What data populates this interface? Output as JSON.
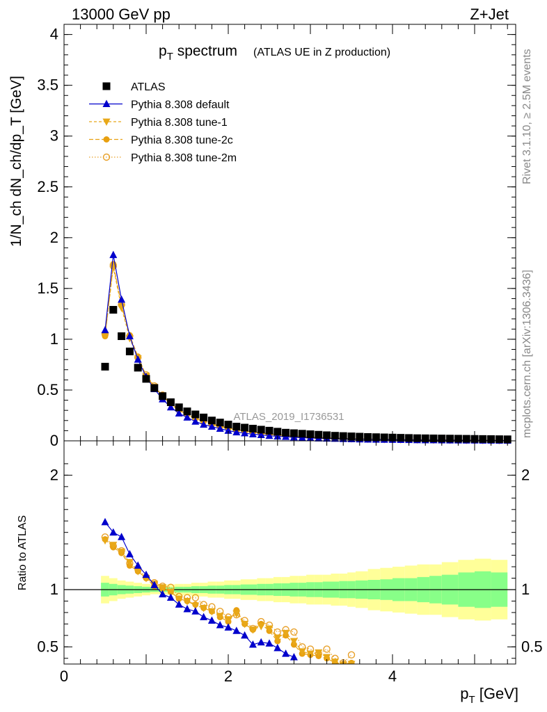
{
  "header": {
    "left": "13000 GeV pp",
    "right": "Z+Jet"
  },
  "side_text": {
    "top": "Rivet 3.1.10, ≥ 2.5M events",
    "bottom": "mcplots.cern.ch [arXiv:1306.3436]"
  },
  "watermark": "ATLAS_2019_I1736531",
  "chart_data": [
    {
      "type": "scatter",
      "title": "p_T spectrum",
      "title_main": "p",
      "title_sub": "T",
      "title_rest": " spectrum",
      "title_note": "(ATLAS UE in Z production)",
      "ylabel": "1/N_ch dN_ch/dp_T [GeV]",
      "xlim": [
        0,
        5.5
      ],
      "ylim": [
        0,
        4.1
      ],
      "yticks": [
        "0",
        "0.5",
        "1",
        "1.5",
        "2",
        "2.5",
        "3",
        "3.5",
        "4"
      ],
      "legend_position": "top-left",
      "series": [
        {
          "name": "ATLAS",
          "color": "#000000",
          "marker": "square",
          "x": [
            0.5,
            0.6,
            0.7,
            0.8,
            0.9,
            1.0,
            1.1,
            1.2,
            1.3,
            1.4,
            1.5,
            1.6,
            1.7,
            1.8,
            1.9,
            2.0,
            2.1,
            2.2,
            2.3,
            2.4,
            2.5,
            2.6,
            2.7,
            2.8,
            2.9,
            3.0,
            3.1,
            3.2,
            3.3,
            3.4,
            3.5,
            3.6,
            3.7,
            3.8,
            3.9,
            4.0,
            4.1,
            4.2,
            4.3,
            4.4,
            4.5,
            4.6,
            4.7,
            4.8,
            4.9,
            5.0,
            5.1,
            5.2,
            5.3,
            5.4
          ],
          "y": [
            0.73,
            1.29,
            1.03,
            0.88,
            0.72,
            0.61,
            0.52,
            0.44,
            0.38,
            0.33,
            0.29,
            0.26,
            0.23,
            0.2,
            0.18,
            0.16,
            0.14,
            0.13,
            0.12,
            0.11,
            0.1,
            0.09,
            0.08,
            0.075,
            0.07,
            0.065,
            0.06,
            0.055,
            0.05,
            0.047,
            0.044,
            0.041,
            0.038,
            0.036,
            0.034,
            0.032,
            0.03,
            0.028,
            0.026,
            0.025,
            0.024,
            0.023,
            0.022,
            0.021,
            0.02,
            0.019,
            0.018,
            0.017,
            0.016,
            0.015
          ]
        },
        {
          "name": "Pythia 8.308 default",
          "color": "#0000cc",
          "marker": "triangle",
          "x": [
            0.5,
            0.6,
            0.7,
            0.8,
            0.9,
            1.0,
            1.1,
            1.2,
            1.3,
            1.4,
            1.5,
            1.6,
            1.7,
            1.8,
            1.9,
            2.0,
            2.1,
            2.2,
            2.3,
            2.4,
            2.5,
            2.6,
            2.7,
            2.8,
            2.9,
            3.0,
            3.1,
            3.2,
            3.3,
            3.4,
            3.5,
            3.6,
            3.7,
            3.8,
            3.9,
            4.0,
            4.1,
            4.2,
            4.3,
            4.4,
            4.5,
            4.6,
            4.7,
            4.8,
            4.9,
            5.0,
            5.1,
            5.2,
            5.3,
            5.4
          ],
          "y": [
            1.09,
            1.83,
            1.39,
            1.03,
            0.8,
            0.63,
            0.51,
            0.41,
            0.33,
            0.27,
            0.23,
            0.19,
            0.16,
            0.14,
            0.12,
            0.1,
            0.085,
            0.075,
            0.065,
            0.058,
            0.05,
            0.044,
            0.04,
            0.035,
            0.031,
            0.028,
            0.025,
            0.023,
            0.021,
            0.019,
            0.017,
            0.015,
            0.014,
            0.013,
            0.012,
            0.011,
            0.01,
            0.009,
            0.008,
            0.007,
            0.0065,
            0.006,
            0.0055,
            0.005,
            0.0045,
            0.004,
            0.0035,
            0.003,
            0.0028,
            0.0025
          ]
        },
        {
          "name": "Pythia 8.308 tune-1",
          "color": "#e8a818",
          "marker": "triangle-down",
          "x": [
            0.5,
            0.6,
            0.7,
            0.8,
            0.9,
            1.0,
            1.1,
            1.2,
            1.3,
            1.4,
            1.5,
            1.6,
            1.7,
            1.8,
            1.9,
            2.0,
            2.1,
            2.2,
            2.3,
            2.4,
            2.5,
            2.6,
            2.7,
            2.8,
            2.9,
            3.0,
            3.1,
            3.2,
            3.3,
            3.4,
            3.5,
            3.6,
            3.7,
            3.8,
            3.9,
            4.0,
            4.1,
            4.2,
            4.3,
            4.4,
            4.5,
            4.6,
            4.7,
            4.8,
            4.9,
            5.0,
            5.1,
            5.2,
            5.3,
            5.4
          ],
          "y": [
            1.04,
            1.71,
            1.31,
            1.01,
            0.81,
            0.64,
            0.53,
            0.44,
            0.36,
            0.3,
            0.26,
            0.22,
            0.19,
            0.16,
            0.14,
            0.12,
            0.11,
            0.095,
            0.085,
            0.075,
            0.066,
            0.058,
            0.052,
            0.046,
            0.041,
            0.037,
            0.033,
            0.03,
            0.027,
            0.024,
            0.022,
            0.02,
            0.018,
            0.016,
            0.015,
            0.014,
            0.013,
            0.012,
            0.011,
            0.01,
            0.009,
            0.0085,
            0.008,
            0.0075,
            0.007,
            0.0065,
            0.006,
            0.0055,
            0.005,
            0.0045
          ]
        },
        {
          "name": "Pythia 8.308 tune-2c",
          "color": "#e8a010",
          "marker": "circle",
          "x": [
            0.5,
            0.6,
            0.7,
            0.8,
            0.9,
            1.0,
            1.1,
            1.2,
            1.3,
            1.4,
            1.5,
            1.6,
            1.7,
            1.8,
            1.9,
            2.0,
            2.1,
            2.2,
            2.3,
            2.4,
            2.5,
            2.6,
            2.7,
            2.8,
            2.9,
            3.0,
            3.1,
            3.2,
            3.3,
            3.4,
            3.5,
            3.6,
            3.7,
            3.8,
            3.9,
            4.0,
            4.1,
            4.2,
            4.3,
            4.4,
            4.5,
            4.6,
            4.7,
            4.8,
            4.9,
            5.0,
            5.1,
            5.2,
            5.3,
            5.4
          ],
          "y": [
            1.03,
            1.74,
            1.33,
            1.04,
            0.83,
            0.64,
            0.53,
            0.44,
            0.37,
            0.3,
            0.26,
            0.22,
            0.19,
            0.16,
            0.14,
            0.12,
            0.11,
            0.095,
            0.085,
            0.075,
            0.066,
            0.058,
            0.052,
            0.046,
            0.041,
            0.037,
            0.033,
            0.03,
            0.027,
            0.024,
            0.022,
            0.02,
            0.018,
            0.016,
            0.015,
            0.014,
            0.013,
            0.012,
            0.011,
            0.01,
            0.009,
            0.0085,
            0.008,
            0.0075,
            0.007,
            0.0065,
            0.006,
            0.0055,
            0.005,
            0.0045
          ]
        },
        {
          "name": "Pythia 8.308 tune-2m",
          "color": "#e8a028",
          "marker": "circle-open",
          "x": [
            0.5,
            0.6,
            0.7,
            0.8,
            0.9,
            1.0,
            1.1,
            1.2,
            1.3,
            1.4,
            1.5,
            1.6,
            1.7,
            1.8,
            1.9,
            2.0,
            2.1,
            2.2,
            2.3,
            2.4,
            2.5,
            2.6,
            2.7,
            2.8,
            2.9,
            3.0,
            3.1,
            3.2,
            3.3,
            3.4,
            3.5,
            3.6,
            3.7,
            3.8,
            3.9,
            4.0,
            4.1,
            4.2,
            4.3,
            4.4,
            4.5,
            4.6,
            4.7,
            4.8,
            4.9,
            5.0,
            5.1,
            5.2,
            5.3,
            5.4
          ],
          "y": [
            1.05,
            1.72,
            1.34,
            1.03,
            0.82,
            0.65,
            0.54,
            0.45,
            0.37,
            0.31,
            0.27,
            0.23,
            0.2,
            0.17,
            0.15,
            0.13,
            0.11,
            0.1,
            0.09,
            0.08,
            0.07,
            0.062,
            0.055,
            0.049,
            0.044,
            0.039,
            0.035,
            0.032,
            0.029,
            0.026,
            0.023,
            0.021,
            0.019,
            0.017,
            0.016,
            0.015,
            0.014,
            0.013,
            0.012,
            0.011,
            0.01,
            0.009,
            0.0085,
            0.008,
            0.0075,
            0.007,
            0.0065,
            0.006,
            0.0055,
            0.005
          ]
        }
      ]
    },
    {
      "type": "scatter",
      "title": "",
      "ylabel": "Ratio to ATLAS",
      "xlabel": "p_T [GeV]",
      "xlabel_main": "p",
      "xlabel_sub": "T",
      "xlabel_rest": " [GeV]",
      "xlim": [
        0,
        5.5
      ],
      "ylim": [
        0.35,
        2.3
      ],
      "xticks": [
        "0",
        "2",
        "4"
      ],
      "yticks": [
        "0.5",
        "1",
        "2"
      ],
      "reference_line": 1,
      "bands": {
        "x_edges": [
          0.45,
          0.55,
          0.65,
          0.75,
          0.85,
          0.95,
          1.05,
          1.15,
          1.25,
          1.35,
          1.45,
          1.55,
          1.65,
          1.75,
          1.85,
          1.95,
          2.05,
          2.15,
          2.25,
          2.35,
          2.45,
          2.55,
          2.65,
          2.75,
          2.85,
          2.95,
          3.05,
          3.15,
          3.25,
          3.35,
          3.45,
          3.55,
          3.7,
          3.85,
          4.0,
          4.15,
          4.3,
          4.45,
          4.6,
          4.8,
          5.0,
          5.2,
          5.4
        ],
        "stat_half": [
          0.06,
          0.05,
          0.04,
          0.035,
          0.03,
          0.025,
          0.02,
          0.02,
          0.02,
          0.025,
          0.025,
          0.03,
          0.03,
          0.035,
          0.035,
          0.04,
          0.04,
          0.045,
          0.045,
          0.05,
          0.05,
          0.055,
          0.055,
          0.06,
          0.06,
          0.065,
          0.065,
          0.07,
          0.07,
          0.075,
          0.075,
          0.08,
          0.085,
          0.09,
          0.1,
          0.1,
          0.11,
          0.12,
          0.13,
          0.15,
          0.16,
          0.15
        ],
        "total_half": [
          0.12,
          0.1,
          0.08,
          0.07,
          0.06,
          0.05,
          0.04,
          0.04,
          0.045,
          0.05,
          0.05,
          0.06,
          0.06,
          0.07,
          0.07,
          0.08,
          0.08,
          0.09,
          0.09,
          0.1,
          0.1,
          0.11,
          0.11,
          0.12,
          0.12,
          0.13,
          0.13,
          0.13,
          0.14,
          0.14,
          0.15,
          0.16,
          0.18,
          0.19,
          0.2,
          0.21,
          0.22,
          0.22,
          0.24,
          0.26,
          0.27,
          0.26
        ],
        "stat_color": "#88ff88",
        "total_color": "#ffff99"
      },
      "series": [
        {
          "name": "Pythia 8.308 default",
          "color": "#0000cc",
          "marker": "triangle",
          "x": [
            0.5,
            0.6,
            0.7,
            0.8,
            0.9,
            1.0,
            1.1,
            1.2,
            1.3,
            1.4,
            1.5,
            1.6,
            1.7,
            1.8,
            1.9,
            2.0,
            2.1,
            2.2,
            2.3,
            2.4,
            2.5,
            2.6,
            2.7,
            2.8
          ],
          "y": [
            1.59,
            1.5,
            1.46,
            1.31,
            1.21,
            1.13,
            1.04,
            0.96,
            0.93,
            0.87,
            0.83,
            0.81,
            0.76,
            0.73,
            0.69,
            0.67,
            0.64,
            0.6,
            0.52,
            0.54,
            0.53,
            0.49,
            0.44,
            0.41
          ]
        },
        {
          "name": "Pythia 8.308 tune-1",
          "color": "#e8a818",
          "marker": "triangle-down",
          "x": [
            0.5,
            0.6,
            0.7,
            0.8,
            0.9,
            1.0,
            1.1,
            1.2,
            1.3,
            1.4,
            1.5,
            1.6,
            1.7,
            1.8,
            1.9,
            2.0,
            2.1,
            2.2,
            2.3,
            2.4,
            2.5,
            2.6,
            2.7,
            2.8,
            2.9,
            3.0,
            3.1,
            3.2,
            3.3,
            3.4,
            3.5
          ],
          "y": [
            1.43,
            1.39,
            1.33,
            1.24,
            1.16,
            1.1,
            1.05,
            1.02,
            0.98,
            0.92,
            0.9,
            0.86,
            0.84,
            0.81,
            0.77,
            0.74,
            0.79,
            0.7,
            0.65,
            0.68,
            0.66,
            0.58,
            0.62,
            0.55,
            0.46,
            0.44,
            0.45,
            0.41,
            0.37,
            0.34,
            0.35
          ]
        },
        {
          "name": "Pythia 8.308 tune-2c",
          "color": "#e8a010",
          "marker": "circle",
          "x": [
            0.5,
            0.6,
            0.7,
            0.8,
            0.9,
            1.0,
            1.1,
            1.2,
            1.3,
            1.4,
            1.5,
            1.6,
            1.7,
            1.8,
            1.9,
            2.0,
            2.1,
            2.2,
            2.3,
            2.4,
            2.5,
            2.6,
            2.7,
            2.8,
            2.9,
            3.0,
            3.1,
            3.2,
            3.3,
            3.4,
            3.5
          ],
          "y": [
            1.44,
            1.37,
            1.32,
            1.21,
            1.16,
            1.1,
            1.03,
            1.01,
            0.98,
            0.92,
            0.9,
            0.87,
            0.84,
            0.81,
            0.76,
            0.72,
            0.82,
            0.7,
            0.65,
            0.7,
            0.64,
            0.55,
            0.6,
            0.52,
            0.44,
            0.43,
            0.42,
            0.4,
            0.36,
            0.35,
            0.36
          ]
        },
        {
          "name": "Pythia 8.308 tune-2m",
          "color": "#e8a028",
          "marker": "circle-open",
          "x": [
            0.5,
            0.6,
            0.7,
            0.8,
            0.9,
            1.0,
            1.1,
            1.2,
            1.3,
            1.4,
            1.5,
            1.6,
            1.7,
            1.8,
            1.9,
            2.0,
            2.1,
            2.2,
            2.3,
            2.4,
            2.5,
            2.6,
            2.7,
            2.8,
            2.9,
            3.0,
            3.1,
            3.2,
            3.3,
            3.4,
            3.5
          ],
          "y": [
            1.46,
            1.38,
            1.34,
            1.23,
            1.18,
            1.11,
            1.06,
            1.03,
            1.02,
            0.94,
            0.93,
            0.93,
            0.87,
            0.85,
            0.81,
            0.76,
            0.78,
            0.73,
            0.66,
            0.72,
            0.69,
            0.63,
            0.65,
            0.63,
            0.5,
            0.48,
            0.44,
            0.48,
            0.4,
            0.36,
            0.43
          ]
        }
      ]
    }
  ]
}
